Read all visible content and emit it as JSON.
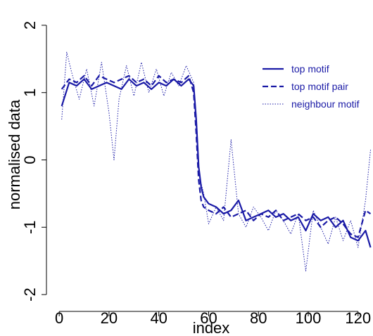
{
  "chart_data": {
    "type": "line",
    "title": "",
    "xlabel": "index",
    "ylabel": "normalised data",
    "xlim": [
      -4,
      126
    ],
    "ylim": [
      -2.25,
      2.25
    ],
    "xticks": [
      0,
      20,
      40,
      60,
      80,
      100,
      120
    ],
    "yticks": [
      -2,
      -1,
      0,
      1,
      2
    ],
    "grid": false,
    "legend_position": "top-right",
    "line_color": "#1a1aa6",
    "series": [
      {
        "name": "top motif",
        "style": "solid",
        "x": [
          1,
          4,
          7,
          10,
          13,
          16,
          19,
          22,
          25,
          28,
          31,
          34,
          37,
          40,
          43,
          46,
          49,
          52,
          54,
          55,
          56,
          57,
          58,
          60,
          63,
          66,
          69,
          72,
          75,
          78,
          81,
          84,
          87,
          90,
          93,
          96,
          99,
          102,
          105,
          108,
          111,
          114,
          117,
          120,
          123,
          125
        ],
        "y": [
          0.8,
          1.15,
          1.1,
          1.2,
          1.05,
          1.1,
          1.15,
          1.1,
          1.05,
          1.2,
          1.1,
          1.15,
          1.05,
          1.15,
          1.1,
          1.2,
          1.1,
          1.2,
          1.1,
          0.6,
          -0.1,
          -0.4,
          -0.55,
          -0.65,
          -0.7,
          -0.8,
          -0.75,
          -0.6,
          -0.9,
          -0.85,
          -0.8,
          -0.75,
          -0.85,
          -0.8,
          -0.9,
          -0.85,
          -1.05,
          -0.8,
          -0.9,
          -0.85,
          -1.0,
          -0.9,
          -1.15,
          -1.2,
          -1.05,
          -1.3
        ]
      },
      {
        "name": "top motif pair",
        "style": "dashed",
        "x": [
          1,
          4,
          7,
          10,
          13,
          16,
          19,
          22,
          25,
          28,
          31,
          34,
          37,
          40,
          43,
          46,
          49,
          52,
          54,
          55,
          56,
          57,
          58,
          60,
          63,
          66,
          69,
          72,
          75,
          78,
          81,
          84,
          87,
          90,
          93,
          96,
          99,
          102,
          105,
          108,
          111,
          114,
          117,
          120,
          123,
          125
        ],
        "y": [
          1.05,
          1.2,
          1.15,
          1.25,
          1.1,
          1.25,
          1.2,
          1.15,
          1.2,
          1.25,
          1.15,
          1.2,
          1.1,
          1.25,
          1.15,
          1.2,
          1.15,
          1.25,
          1.0,
          0.4,
          -0.3,
          -0.6,
          -0.7,
          -0.75,
          -0.8,
          -0.7,
          -0.85,
          -0.8,
          -0.75,
          -0.9,
          -0.8,
          -0.85,
          -0.75,
          -0.9,
          -0.85,
          -0.8,
          -0.9,
          -0.85,
          -1.0,
          -0.9,
          -0.85,
          -0.95,
          -1.1,
          -1.15,
          -0.75,
          -0.8
        ]
      },
      {
        "name": "neighbour motif",
        "style": "dotted",
        "x": [
          1,
          3,
          5,
          8,
          11,
          14,
          17,
          20,
          22,
          24,
          27,
          30,
          33,
          36,
          39,
          42,
          45,
          48,
          51,
          54,
          56,
          58,
          60,
          63,
          66,
          69,
          72,
          75,
          78,
          81,
          84,
          87,
          90,
          93,
          96,
          99,
          102,
          105,
          108,
          111,
          114,
          117,
          120,
          123,
          125
        ],
        "y": [
          0.6,
          1.6,
          1.3,
          0.9,
          1.35,
          0.8,
          1.45,
          0.7,
          0.0,
          0.9,
          1.4,
          0.95,
          1.45,
          1.0,
          1.35,
          0.95,
          1.3,
          1.1,
          1.4,
          1.15,
          -0.2,
          -0.5,
          -0.95,
          -0.7,
          -0.9,
          0.3,
          -0.8,
          -1.0,
          -0.7,
          -0.85,
          -1.05,
          -0.75,
          -0.9,
          -1.1,
          -0.8,
          -1.65,
          -0.75,
          -1.0,
          -1.25,
          -0.85,
          -1.2,
          -0.9,
          -1.3,
          -0.6,
          0.15
        ]
      }
    ]
  }
}
